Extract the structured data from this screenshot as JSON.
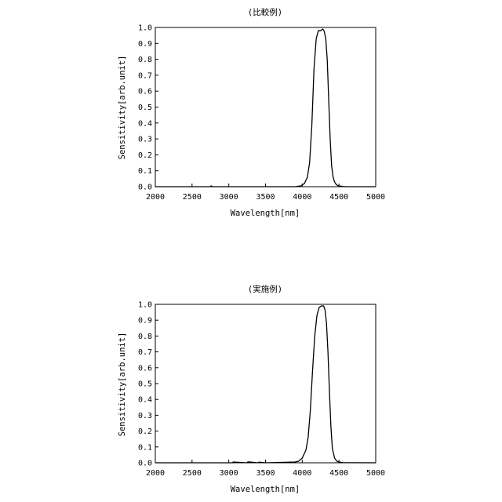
{
  "chart_data": [
    {
      "type": "line",
      "title": "(比較例)",
      "xlabel": "Wavelength[nm]",
      "ylabel": "Sensitivity[arb.unit]",
      "xlim": [
        2000,
        5000
      ],
      "ylim": [
        0,
        1.0
      ],
      "xticks": [
        "2000",
        "2500",
        "3000",
        "3500",
        "4000",
        "4500",
        "5000"
      ],
      "yticks": [
        "0.0",
        "0.1",
        "0.2",
        "0.3",
        "0.4",
        "0.5",
        "0.6",
        "0.7",
        "0.8",
        "0.9",
        "1.0"
      ],
      "grid": false,
      "series": [
        {
          "x": [
            2000,
            2500,
            2750,
            2760,
            2770,
            3000,
            3500,
            3900,
            3980,
            4030,
            4070,
            4100,
            4130,
            4160,
            4190,
            4220,
            4250,
            4280,
            4300,
            4320,
            4340,
            4360,
            4380,
            4400,
            4420,
            4440,
            4460,
            4480,
            4500,
            4550,
            4600,
            5000
          ],
          "y": [
            0.0,
            0.0,
            0.0,
            0.005,
            0.0,
            0.0,
            0.0,
            0.0,
            0.005,
            0.02,
            0.06,
            0.15,
            0.38,
            0.74,
            0.93,
            0.98,
            0.98,
            0.99,
            0.975,
            0.93,
            0.8,
            0.55,
            0.3,
            0.13,
            0.06,
            0.03,
            0.015,
            0.008,
            0.005,
            0.002,
            0.0,
            0.0
          ]
        }
      ]
    },
    {
      "type": "line",
      "title": "(実施例)",
      "xlabel": "Wavelength[nm]",
      "ylabel": "Sensitivity[arb.unit]",
      "xlim": [
        2000,
        5000
      ],
      "ylim": [
        0,
        1.0
      ],
      "xticks": [
        "2000",
        "2500",
        "3000",
        "3500",
        "4000",
        "4500",
        "5000"
      ],
      "yticks": [
        "0.0",
        "0.1",
        "0.2",
        "0.3",
        "0.4",
        "0.5",
        "0.6",
        "0.7",
        "0.8",
        "0.9",
        "1.0"
      ],
      "grid": false,
      "series": [
        {
          "x": [
            2000,
            2500,
            3000,
            3050,
            3060,
            3250,
            3260,
            3400,
            3410,
            3500,
            3900,
            3950,
            4000,
            4050,
            4080,
            4110,
            4140,
            4170,
            4200,
            4230,
            4260,
            4290,
            4310,
            4330,
            4350,
            4370,
            4390,
            4410,
            4440,
            4470,
            4500,
            4550,
            5000
          ],
          "y": [
            0.0,
            0.0,
            0.0,
            0.0,
            0.005,
            0.0,
            0.006,
            0.0,
            0.004,
            0.0,
            0.005,
            0.01,
            0.03,
            0.08,
            0.16,
            0.33,
            0.58,
            0.8,
            0.93,
            0.98,
            0.99,
            0.99,
            0.965,
            0.88,
            0.7,
            0.45,
            0.23,
            0.09,
            0.03,
            0.01,
            0.005,
            0.001,
            0.0
          ]
        }
      ]
    }
  ]
}
